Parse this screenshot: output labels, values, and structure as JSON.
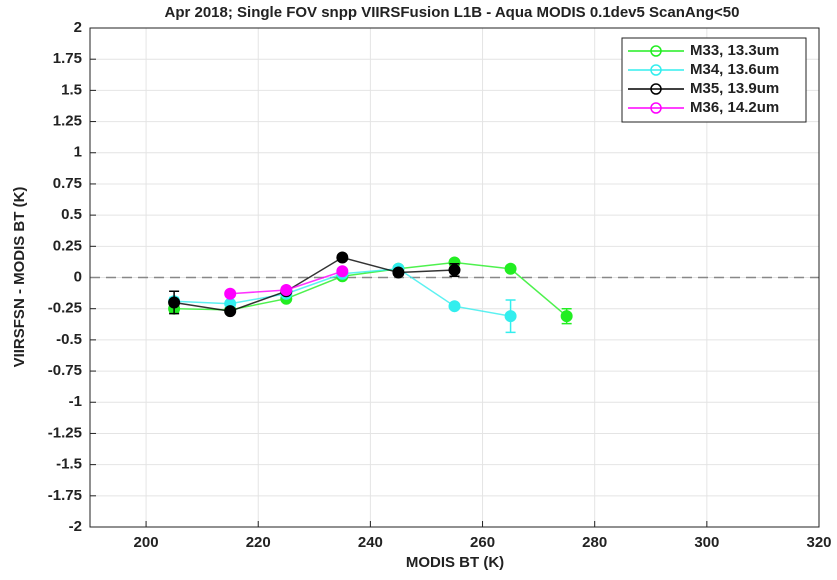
{
  "chart_data": {
    "type": "errorbar-line",
    "title": "Apr 2018; Single FOV snpp VIIRSFusion L1B - Aqua MODIS 0.1dev5 ScanAng<50",
    "xlabel": "MODIS BT (K)",
    "ylabel": "VIIRSFSN - MODIS BT (K)",
    "x": [
      205,
      215,
      225,
      235,
      245,
      255,
      265,
      275
    ],
    "series": [
      {
        "name": "M33, 13.3um",
        "color": "#22ee22",
        "values": [
          -0.25,
          -0.26,
          -0.17,
          0.01,
          0.07,
          0.12,
          0.07,
          -0.31
        ],
        "errors": [
          0.03,
          0.02,
          0.02,
          0.02,
          0.02,
          0.02,
          0.02,
          0.06
        ]
      },
      {
        "name": "M34, 13.6um",
        "color": "#33eeee",
        "values": [
          -0.19,
          -0.21,
          -0.13,
          0.03,
          0.07,
          -0.23,
          -0.31,
          null
        ],
        "errors": [
          0.03,
          0.02,
          0.02,
          0.02,
          0.02,
          0.02,
          0.13,
          null
        ]
      },
      {
        "name": "M35, 13.9um",
        "color": "#000000",
        "values": [
          -0.2,
          -0.27,
          -0.11,
          0.16,
          0.04,
          0.06,
          null,
          null
        ],
        "errors": [
          0.09,
          0.02,
          0.02,
          0.02,
          0.02,
          0.05,
          null,
          null
        ]
      },
      {
        "name": "M36, 14.2um",
        "color": "#ff00ff",
        "values": [
          null,
          -0.13,
          -0.1,
          0.05,
          null,
          null,
          null,
          null
        ],
        "errors": [
          null,
          0.02,
          0.02,
          0.02,
          null,
          null,
          null,
          null
        ]
      }
    ],
    "xlim": [
      190,
      320
    ],
    "xticks": [
      200,
      220,
      240,
      260,
      280,
      300,
      320
    ],
    "ylim": [
      -2,
      2
    ],
    "yticks": [
      -2,
      -1.75,
      -1.5,
      -1.25,
      -1,
      -0.75,
      -0.5,
      -0.25,
      0,
      0.25,
      0.5,
      0.75,
      1,
      1.25,
      1.5,
      1.75,
      2
    ],
    "hline": 0,
    "grid": true,
    "legend": "top-right"
  }
}
